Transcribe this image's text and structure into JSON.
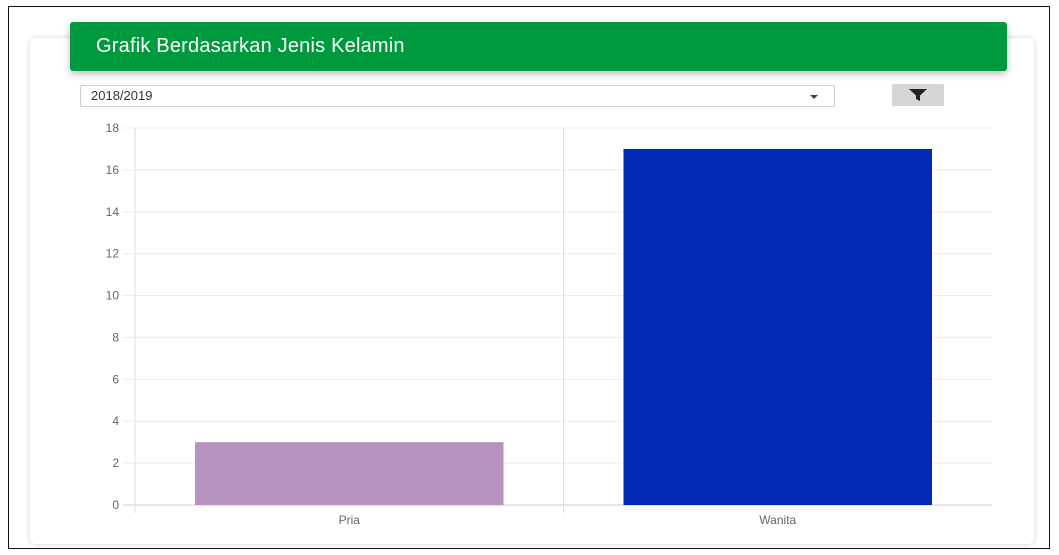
{
  "header": {
    "title": "Grafik Berdasarkan Jenis Kelamin"
  },
  "filter": {
    "selected_year": "2018/2019",
    "button_icon": "filter-icon"
  },
  "colors": {
    "header_bg": "#009a3e",
    "bar_pria": "#b593be",
    "bar_wanita": "#0029b4"
  },
  "chart_data": {
    "type": "bar",
    "title": "",
    "xlabel": "",
    "ylabel": "",
    "categories": [
      "Pria",
      "Wanita"
    ],
    "values": [
      3,
      17
    ],
    "bar_colors": [
      "#b593be",
      "#0029b4"
    ],
    "ylim": [
      0,
      18
    ],
    "yticks": [
      0,
      2,
      4,
      6,
      8,
      10,
      12,
      14,
      16,
      18
    ],
    "grid": true,
    "legend": "none"
  }
}
